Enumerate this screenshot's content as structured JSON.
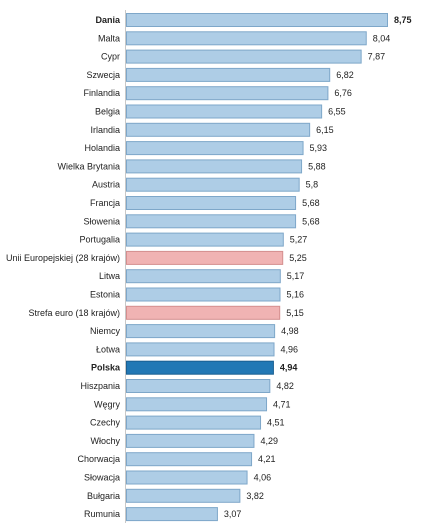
{
  "chart_data": {
    "type": "bar",
    "orientation": "horizontal",
    "title": "",
    "xlabel": "",
    "ylabel": "",
    "xlim": [
      0,
      8.75
    ],
    "grid": false,
    "legend": "none",
    "decimal_separator": ",",
    "categories": [
      "Dania",
      "Malta",
      "Cypr",
      "Szwecja",
      "Finlandia",
      "Belgia",
      "Irlandia",
      "Holandia",
      "Wielka Brytania",
      "Austria",
      "Francja",
      "Słowenia",
      "Portugalia",
      "Unii Europejskiej (28 krajów)",
      "Litwa",
      "Estonia",
      "Strefa euro (18 krajów)",
      "Niemcy",
      "Łotwa",
      "Polska",
      "Hiszpania",
      "Węgry",
      "Czechy",
      "Włochy",
      "Chorwacja",
      "Słowacja",
      "Bułgaria",
      "Rumunia"
    ],
    "values": [
      8.75,
      8.04,
      7.87,
      6.82,
      6.76,
      6.55,
      6.15,
      5.93,
      5.88,
      5.8,
      5.68,
      5.68,
      5.27,
      5.25,
      5.17,
      5.16,
      5.15,
      4.98,
      4.96,
      4.94,
      4.82,
      4.71,
      4.51,
      4.29,
      4.21,
      4.06,
      3.82,
      3.07
    ],
    "value_labels": [
      "8,75",
      "8,04",
      "7,87",
      "6,82",
      "6,76",
      "6,55",
      "6,15",
      "5,93",
      "5,88",
      "5,8",
      "5,68",
      "5,68",
      "5,27",
      "5,25",
      "5,17",
      "5,16",
      "5,15",
      "4,98",
      "4,96",
      "4,94",
      "4,82",
      "4,71",
      "4,51",
      "4,29",
      "4,21",
      "4,06",
      "3,82",
      "3,07"
    ],
    "bold": [
      "Dania",
      "Polska"
    ],
    "colors": {
      "default_fill": "#aecde6",
      "default_stroke": "#7ea7c9",
      "aggregate_fill": "#f0b3b3",
      "aggregate_stroke": "#d48e8e",
      "highlight_fill": "#2278b5",
      "highlight_stroke": "#1a5f91"
    },
    "aggregates": [
      "Unii Europejskiej (28 krajów)",
      "Strefa euro (18 krajów)"
    ],
    "highlight": [
      "Polska"
    ]
  }
}
